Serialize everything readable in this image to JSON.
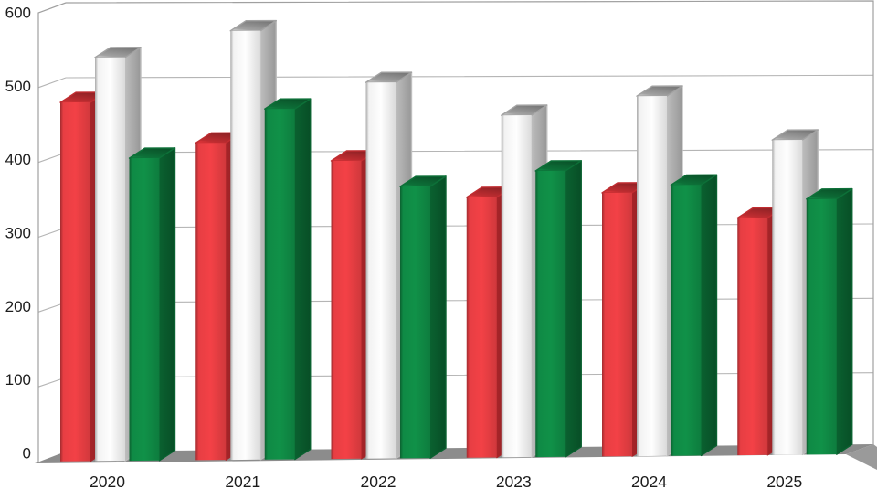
{
  "chart_data": {
    "type": "bar",
    "variant": "3d-column",
    "title": "",
    "legend": "none",
    "grid": "horizontal",
    "background": "#ffffff",
    "categories": [
      "2020",
      "2021",
      "2022",
      "2023",
      "2024",
      "2025"
    ],
    "series": [
      {
        "name": "red",
        "values": [
          480,
          425,
          400,
          350,
          355,
          320
        ],
        "colors": {
          "front": "#e73e43",
          "side": "#a72529",
          "top": "#c02d31"
        }
      },
      {
        "name": "white",
        "values": [
          540,
          575,
          505,
          460,
          485,
          425
        ],
        "colors": {
          "front": "#f2f2f2",
          "side": "#bdbdbd",
          "top": "#a2a2a2"
        }
      },
      {
        "name": "green",
        "values": [
          405,
          470,
          365,
          385,
          365,
          345
        ],
        "colors": {
          "front": "#0f8a45",
          "side": "#0a6130",
          "top": "#0d7038"
        }
      }
    ],
    "xlabel": "",
    "ylabel": "",
    "ylim": [
      0,
      600
    ],
    "ytick_labels": [
      "0",
      "100",
      "200",
      "300",
      "400",
      "500",
      "600"
    ],
    "ytick_values": [
      0,
      100,
      200,
      300,
      400,
      500,
      600
    ],
    "wall_color": "#ffffff",
    "floor_color": "#8c8c8c",
    "floor_side_color": "#9a9a9a",
    "gridline_color": "#b5b5b5",
    "edge_color": "#a0a0a0",
    "label_color": "#1c1c1c"
  }
}
